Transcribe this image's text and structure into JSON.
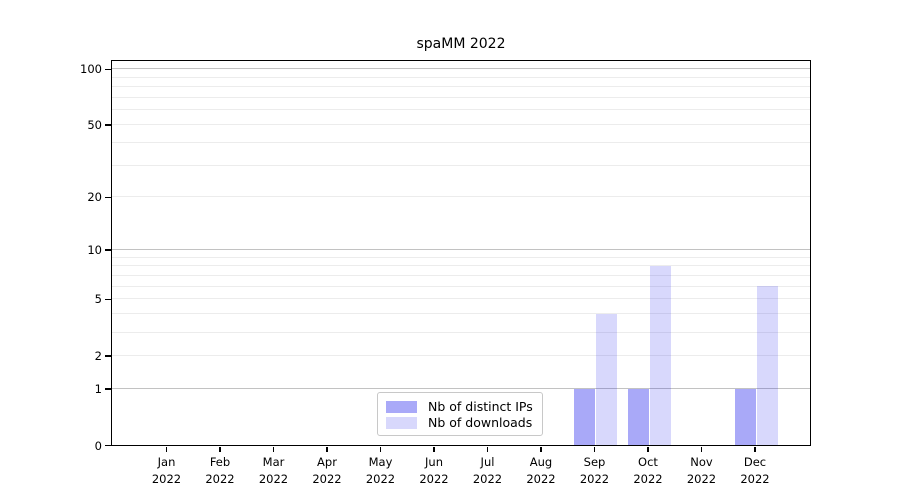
{
  "chart_data": {
    "type": "bar",
    "title": "spaMM 2022",
    "categories": [
      "Jan",
      "Feb",
      "Mar",
      "Apr",
      "May",
      "Jun",
      "Jul",
      "Aug",
      "Sep",
      "Oct",
      "Nov",
      "Dec"
    ],
    "category_year": "2022",
    "series": [
      {
        "name": "Nb of distinct IPs",
        "color": "rgba(10,10,235,0.35)",
        "values": [
          0,
          0,
          0,
          0,
          0,
          0,
          0,
          0,
          1,
          1,
          0,
          1
        ]
      },
      {
        "name": "Nb of downloads",
        "color": "rgba(10,10,235,0.16)",
        "values": [
          0,
          0,
          0,
          0,
          0,
          0,
          0,
          0,
          4,
          8,
          0,
          6
        ]
      }
    ],
    "xlabel": "",
    "ylabel": "",
    "yscale": "log1p",
    "ylim": [
      0,
      110
    ],
    "yticks": [
      0,
      1,
      2,
      5,
      10,
      20,
      50,
      100
    ],
    "grid": {
      "major_values": [
        1,
        10,
        100
      ],
      "minor_values": [
        2,
        3,
        4,
        5,
        6,
        7,
        8,
        9,
        20,
        30,
        40,
        50,
        60,
        70,
        80,
        90
      ],
      "major_color": "#c2c2c2",
      "minor_color": "#ececec"
    },
    "legend": {
      "entries": [
        "Nb of distinct IPs",
        "Nb of downloads"
      ],
      "position": "lower center"
    },
    "colors": {
      "axis": "#000000",
      "background": "#ffffff"
    }
  }
}
